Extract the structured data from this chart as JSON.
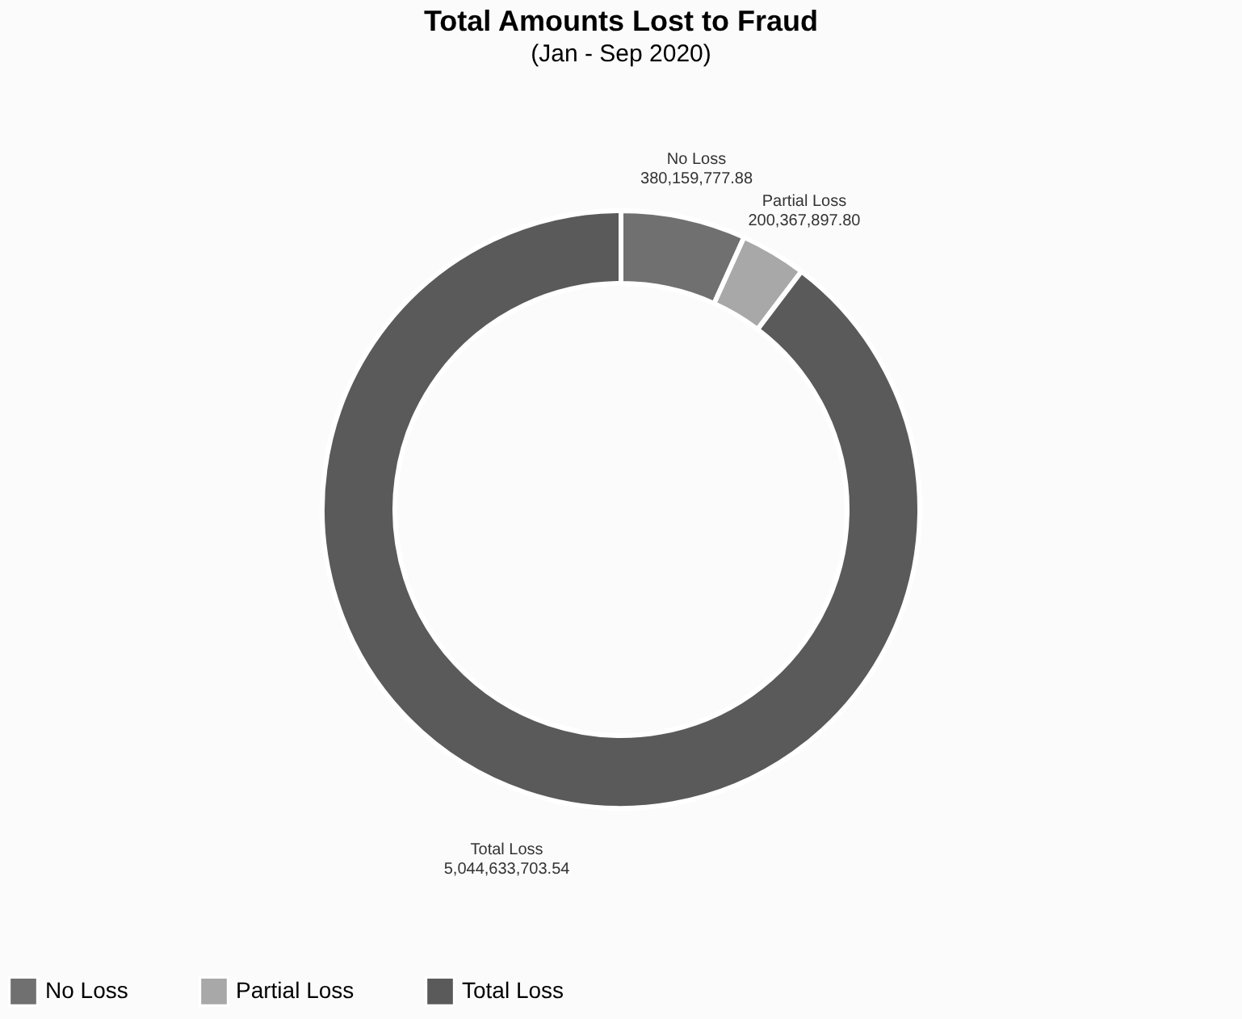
{
  "chart_data": {
    "type": "donut",
    "title": "Total Amounts Lost to Fraud",
    "subtitle": "(Jan - Sep 2020)",
    "categories": [
      "No Loss",
      "Partial Loss",
      "Total Loss"
    ],
    "values": [
      380159777.88,
      200367897.8,
      5044633703.54
    ],
    "value_labels": [
      "380,159,777.88",
      "200,367,897.80",
      "5,044,633,703.54"
    ],
    "colors": [
      "#707070",
      "#a8a8a8",
      "#5a5a5a"
    ],
    "legend": "bottom"
  }
}
